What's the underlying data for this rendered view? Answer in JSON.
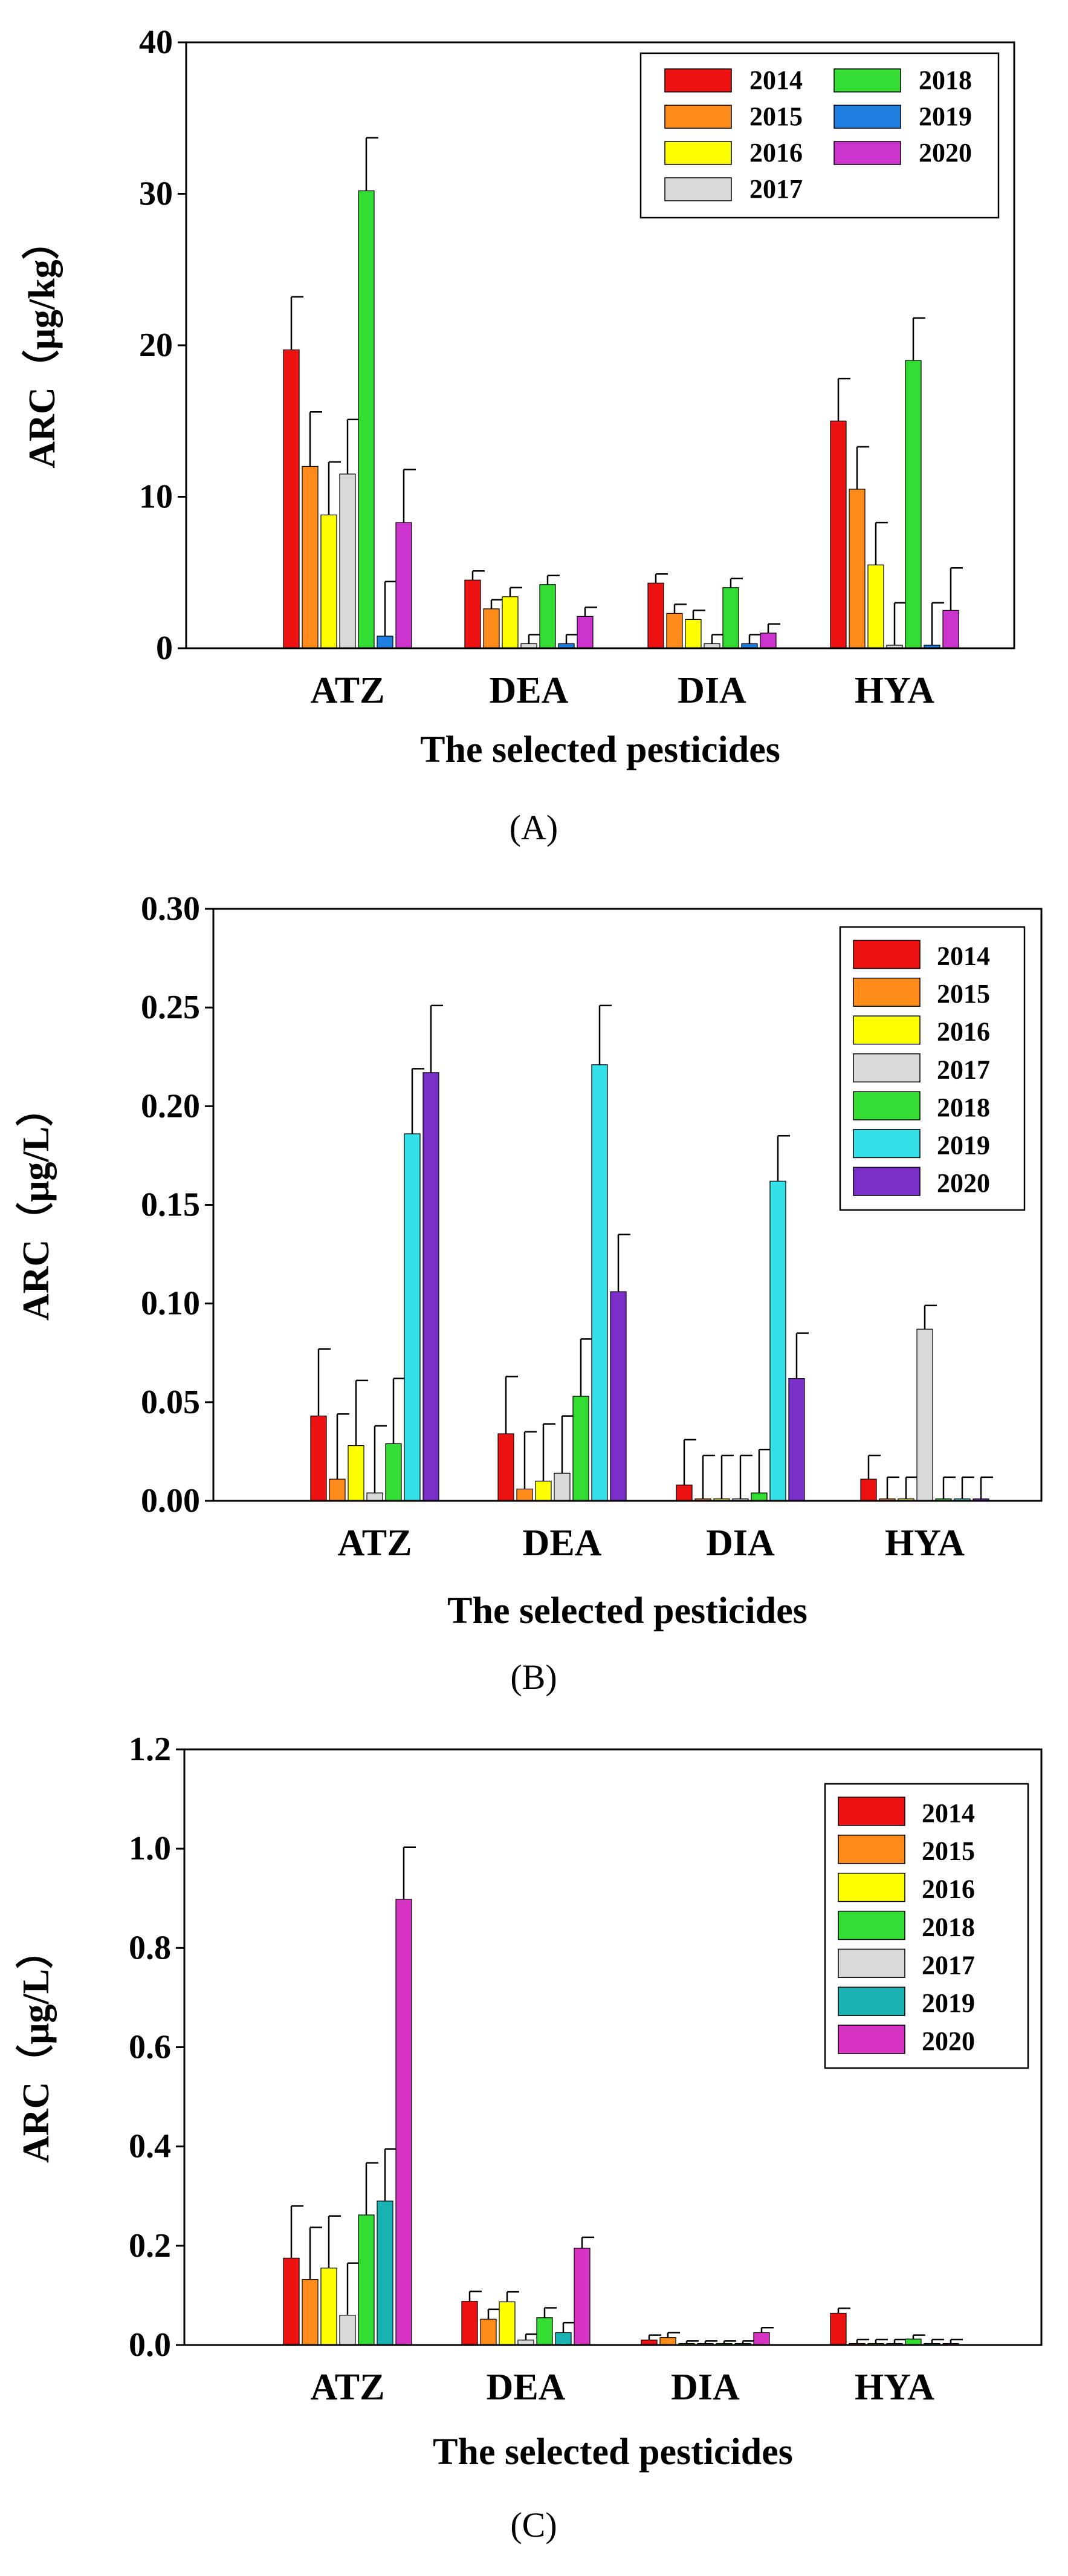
{
  "chart_data": [
    {
      "panel": "(A)",
      "type": "bar",
      "xlabel": "The selected pesticides",
      "ylabel": "ARC（μg/kg）",
      "ylim": [
        0,
        40
      ],
      "yticks": [
        "0",
        "10",
        "20",
        "30",
        "40"
      ],
      "categories": [
        "ATZ",
        "DEA",
        "DIA",
        "HYA"
      ],
      "legend_position": "top-right",
      "legend_columns": 2,
      "series": [
        {
          "name": "2014",
          "color": "#ee1111",
          "values": [
            19.7,
            4.5,
            4.3,
            15.0
          ],
          "errors": [
            3.5,
            0.6,
            0.6,
            2.8
          ]
        },
        {
          "name": "2015",
          "color": "#ff8c1a",
          "values": [
            12.0,
            2.6,
            2.3,
            10.5
          ],
          "errors": [
            3.6,
            0.6,
            0.6,
            2.8
          ]
        },
        {
          "name": "2016",
          "color": "#ffff00",
          "values": [
            8.8,
            3.4,
            1.9,
            5.5
          ],
          "errors": [
            3.5,
            0.6,
            0.6,
            2.8
          ]
        },
        {
          "name": "2017",
          "color": "#d9d9d9",
          "values": [
            11.5,
            0.3,
            0.3,
            0.2
          ],
          "errors": [
            3.6,
            0.6,
            0.6,
            2.8
          ]
        },
        {
          "name": "2018",
          "color": "#33dd33",
          "values": [
            30.2,
            4.2,
            4.0,
            19.0
          ],
          "errors": [
            3.5,
            0.6,
            0.6,
            2.8
          ]
        },
        {
          "name": "2019",
          "color": "#1e7fe0",
          "values": [
            0.8,
            0.3,
            0.3,
            0.2
          ],
          "errors": [
            3.6,
            0.6,
            0.6,
            2.8
          ]
        },
        {
          "name": "2020",
          "color": "#cc33cc",
          "values": [
            8.3,
            2.1,
            1.0,
            2.5
          ],
          "errors": [
            3.5,
            0.6,
            0.6,
            2.8
          ]
        }
      ]
    },
    {
      "panel": "(B)",
      "type": "bar",
      "xlabel": "The selected pesticides",
      "ylabel": "ARC（μg/L）",
      "ylim": [
        0,
        0.3
      ],
      "yticks": [
        "0.00",
        "0.05",
        "0.10",
        "0.15",
        "0.20",
        "0.25",
        "0.30"
      ],
      "categories": [
        "ATZ",
        "DEA",
        "DIA",
        "HYA"
      ],
      "legend_position": "top-right",
      "legend_columns": 1,
      "series": [
        {
          "name": "2014",
          "color": "#ee1111",
          "values": [
            0.043,
            0.034,
            0.008,
            0.011
          ],
          "errors": [
            0.034,
            0.029,
            0.023,
            0.012
          ]
        },
        {
          "name": "2015",
          "color": "#ff8c1a",
          "values": [
            0.011,
            0.006,
            0.001,
            0.001
          ],
          "errors": [
            0.033,
            0.029,
            0.022,
            0.011
          ]
        },
        {
          "name": "2016",
          "color": "#ffff00",
          "values": [
            0.028,
            0.01,
            0.001,
            0.001
          ],
          "errors": [
            0.033,
            0.029,
            0.022,
            0.011
          ]
        },
        {
          "name": "2017",
          "color": "#d9d9d9",
          "values": [
            0.004,
            0.014,
            0.001,
            0.087
          ],
          "errors": [
            0.034,
            0.029,
            0.022,
            0.012
          ]
        },
        {
          "name": "2018",
          "color": "#33dd33",
          "values": [
            0.029,
            0.053,
            0.004,
            0.001
          ],
          "errors": [
            0.033,
            0.029,
            0.022,
            0.011
          ]
        },
        {
          "name": "2019",
          "color": "#33e0e8",
          "values": [
            0.186,
            0.221,
            0.162,
            0.001
          ],
          "errors": [
            0.033,
            0.03,
            0.023,
            0.011
          ]
        },
        {
          "name": "2020",
          "color": "#7a2fc8",
          "values": [
            0.217,
            0.106,
            0.062,
            0.001
          ],
          "errors": [
            0.034,
            0.029,
            0.023,
            0.011
          ]
        }
      ]
    },
    {
      "panel": "(C)",
      "type": "bar",
      "xlabel": "The selected pesticides",
      "ylabel": "ARC（μg/L）",
      "ylim": [
        0,
        1.2
      ],
      "yticks": [
        "0.0",
        "0.2",
        "0.4",
        "0.6",
        "0.8",
        "1.0",
        "1.2"
      ],
      "categories": [
        "ATZ",
        "DEA",
        "DIA",
        "HYA"
      ],
      "legend_position": "top-right",
      "legend_columns": 1,
      "series": [
        {
          "name": "2014",
          "color": "#ee1111",
          "values": [
            0.175,
            0.088,
            0.01,
            0.064
          ],
          "errors": [
            0.105,
            0.02,
            0.01,
            0.01
          ]
        },
        {
          "name": "2015",
          "color": "#ff8c1a",
          "values": [
            0.132,
            0.052,
            0.015,
            0.003
          ],
          "errors": [
            0.105,
            0.02,
            0.01,
            0.008
          ]
        },
        {
          "name": "2016",
          "color": "#ffff00",
          "values": [
            0.155,
            0.087,
            0.003,
            0.003
          ],
          "errors": [
            0.105,
            0.02,
            0.005,
            0.008
          ]
        },
        {
          "name": "2017",
          "color": "#d9d9d9",
          "values": [
            0.06,
            0.01,
            0.003,
            0.003
          ],
          "errors": [
            0.105,
            0.012,
            0.005,
            0.008
          ]
        },
        {
          "name": "2018",
          "color": "#33dd33",
          "values": [
            0.262,
            0.055,
            0.003,
            0.012
          ],
          "errors": [
            0.105,
            0.02,
            0.005,
            0.008
          ]
        },
        {
          "name": "2019",
          "color": "#19b3b3",
          "values": [
            0.29,
            0.025,
            0.003,
            0.003
          ],
          "errors": [
            0.105,
            0.02,
            0.005,
            0.008
          ]
        },
        {
          "name": "2020",
          "color": "#d633c2",
          "values": [
            0.898,
            0.195,
            0.025,
            0.003
          ],
          "errors": [
            0.105,
            0.022,
            0.01,
            0.008
          ]
        }
      ],
      "legend_order": [
        "2014",
        "2015",
        "2016",
        "2018",
        "2017",
        "2019",
        "2020"
      ]
    }
  ]
}
